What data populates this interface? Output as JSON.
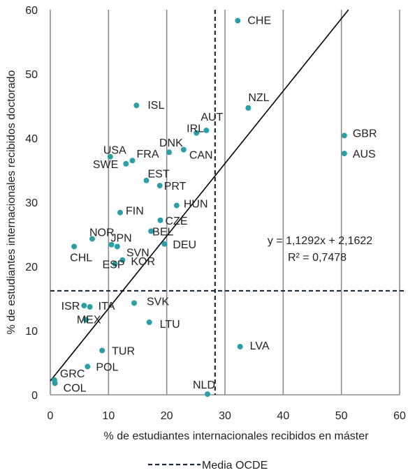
{
  "chart_data": {
    "type": "scatter",
    "xlabel": "% de estudiantes internacionales recibidos en máster",
    "ylabel": "% de estudiantes internacionales recibidos doctorado",
    "xlim": [
      0,
      60
    ],
    "ylim": [
      0,
      60
    ],
    "x_ticks": [
      0,
      10,
      20,
      30,
      40,
      50,
      60
    ],
    "y_ticks": [
      0,
      10,
      20,
      30,
      40,
      50,
      60
    ],
    "grid": "vertical",
    "point_color": "#2a9fa8",
    "points": [
      {
        "label": "CHE",
        "x": 32.2,
        "y": 58.3
      },
      {
        "label": "ISL",
        "x": 14.8,
        "y": 45.1
      },
      {
        "label": "NZL",
        "x": 34.0,
        "y": 44.7
      },
      {
        "label": "AUT",
        "x": 26.8,
        "y": 41.2
      },
      {
        "label": "IRL",
        "x": 25.1,
        "y": 40.8
      },
      {
        "label": "GBR",
        "x": 50.5,
        "y": 40.4
      },
      {
        "label": "AUS",
        "x": 50.5,
        "y": 37.6
      },
      {
        "label": "USA",
        "x": 10.3,
        "y": 37.1
      },
      {
        "label": "DNK",
        "x": 20.4,
        "y": 37.8
      },
      {
        "label": "CAN",
        "x": 22.9,
        "y": 38.2
      },
      {
        "label": "FRA",
        "x": 14.1,
        "y": 36.5
      },
      {
        "label": "SWE",
        "x": 13.0,
        "y": 36.0
      },
      {
        "label": "EST",
        "x": 16.5,
        "y": 33.4
      },
      {
        "label": "PRT",
        "x": 18.8,
        "y": 32.6
      },
      {
        "label": "HUN",
        "x": 21.7,
        "y": 29.5
      },
      {
        "label": "FIN",
        "x": 12.0,
        "y": 28.4
      },
      {
        "label": "CZE",
        "x": 18.9,
        "y": 27.2
      },
      {
        "label": "BEL",
        "x": 17.3,
        "y": 25.5
      },
      {
        "label": "NOR",
        "x": 7.2,
        "y": 24.3
      },
      {
        "label": "JPN",
        "x": 10.5,
        "y": 23.4
      },
      {
        "label": "SVN",
        "x": 11.5,
        "y": 23.1
      },
      {
        "label": "DEU",
        "x": 19.6,
        "y": 23.5
      },
      {
        "label": "CHL",
        "x": 4.1,
        "y": 23.1
      },
      {
        "label": "ESP",
        "x": 11.1,
        "y": 20.4
      },
      {
        "label": "KOR",
        "x": 12.4,
        "y": 21.0
      },
      {
        "label": "ISR",
        "x": 5.8,
        "y": 13.9
      },
      {
        "label": "ITA",
        "x": 6.8,
        "y": 13.7
      },
      {
        "label": "SVK",
        "x": 14.4,
        "y": 14.3
      },
      {
        "label": "MEX",
        "x": 6.1,
        "y": 11.7
      },
      {
        "label": "LTU",
        "x": 17.0,
        "y": 11.3
      },
      {
        "label": "LVA",
        "x": 32.6,
        "y": 7.5
      },
      {
        "label": "TUR",
        "x": 8.9,
        "y": 6.9
      },
      {
        "label": "POL",
        "x": 6.4,
        "y": 4.4
      },
      {
        "label": "GRC",
        "x": 0.7,
        "y": 2.3
      },
      {
        "label": "COL",
        "x": 0.8,
        "y": 1.8
      },
      {
        "label": "NLD",
        "x": 27.0,
        "y": 0.1
      }
    ],
    "trendline": {
      "slope": 1.1292,
      "intercept": 2.1622
    },
    "equation_text": "y = 1,1292x + 2,1622",
    "r2_text": "R² = 0,7478",
    "oecd_mean": {
      "x": 28.3,
      "y": 16.2,
      "legend_label": "Media OCDE"
    }
  }
}
